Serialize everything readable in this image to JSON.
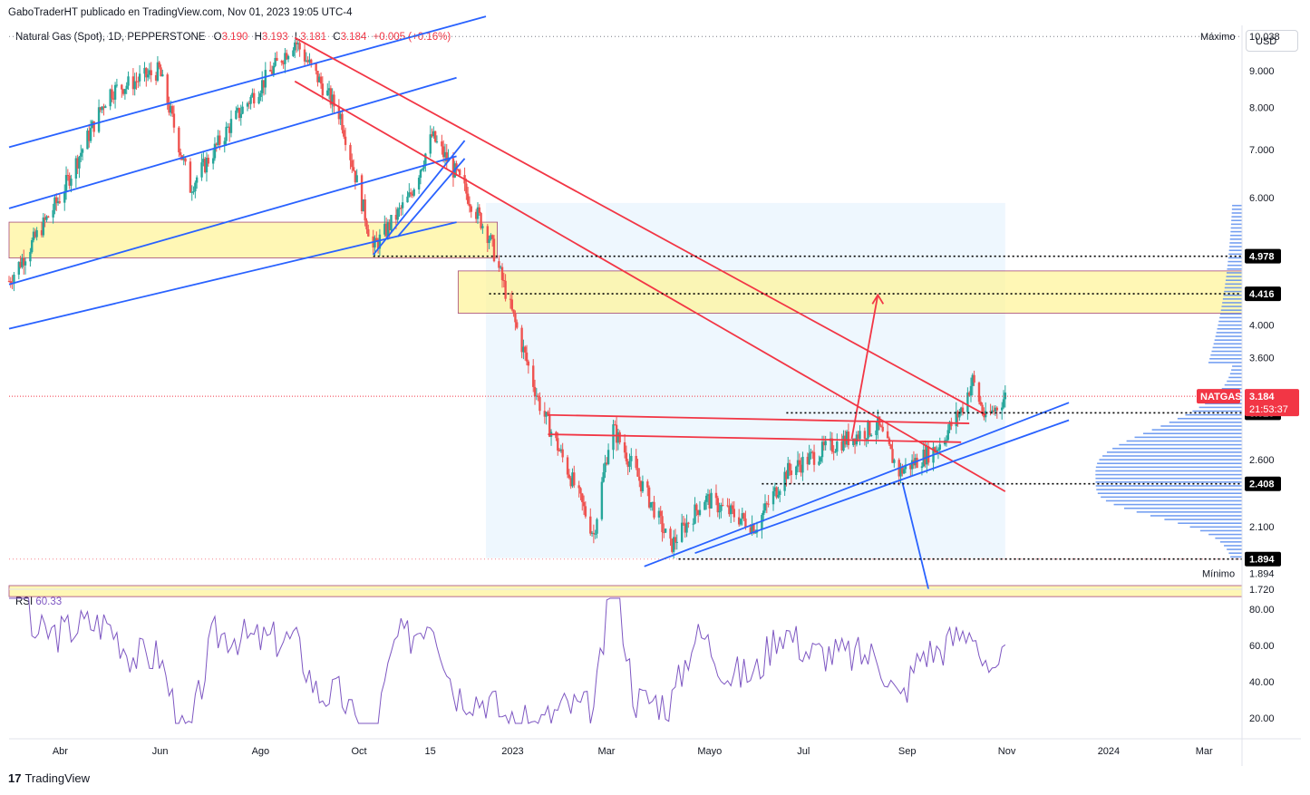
{
  "header": {
    "published_line": "GaboTraderHT publicado en TradingView.com, Nov 01, 2023 19:05 UTC-4"
  },
  "legend": {
    "symbol": "Natural Gas (Spot), 1D, PEPPERSTONE",
    "o_label": "O",
    "o_value": "3.190",
    "h_label": "H",
    "h_value": "3.193",
    "l_label": "L",
    "l_value": "3.181",
    "c_label": "C",
    "c_value": "3.184",
    "change": "+0.005 (+0.16%)"
  },
  "currency_button": "USD",
  "rsi": {
    "label": "RSI",
    "value": "60.33"
  },
  "brand": {
    "logo": "17",
    "name": "TradingView"
  },
  "colors": {
    "up": "#26a69a",
    "down": "#ef5350",
    "blue_line": "#2962ff",
    "red_line": "#f23645",
    "zone_fill": "#fff59d",
    "zone_border": "#880e4f",
    "rsi_line": "#7e57c2",
    "volume_profile": "#5b8def",
    "tag_bg": "#000000"
  },
  "axis": {
    "max_label": "Máximo",
    "max_value": "10.038",
    "min_label": "Mínimo",
    "min_value": "1.894",
    "right_ticks": [
      "9.000",
      "8.000",
      "7.000",
      "6.000",
      "4.000",
      "3.600",
      "2.600",
      "2.100",
      "1.720"
    ],
    "level_tags": [
      "4.978",
      "4.416",
      "3.020",
      "2.408",
      "1.894"
    ],
    "symbol_tag": "NATGAS",
    "price_tag": "3.184",
    "countdown": "21:53:37",
    "rsi_ticks": [
      "80.00",
      "60.00",
      "40.00",
      "20.00"
    ],
    "x_ticks": [
      "Abr",
      "Jun",
      "Ago",
      "Oct",
      "15",
      "2023",
      "Mar",
      "Mayo",
      "Jul",
      "Sep",
      "Nov",
      "2024",
      "Mar"
    ]
  },
  "chart_data": {
    "type": "candlestick",
    "title": "Natural Gas (Spot), 1D, PEPPERSTONE",
    "price_scale": "log",
    "ylim": [
      1.72,
      10.4
    ],
    "x_range": [
      "2022-03",
      "2024-03"
    ],
    "last": {
      "open": 3.19,
      "high": 3.193,
      "low": 3.181,
      "close": 3.184,
      "change": 0.005,
      "change_pct": 0.16
    },
    "max": 10.038,
    "min": 1.894,
    "horizontal_levels": [
      4.978,
      4.416,
      3.02,
      2.408,
      1.894
    ],
    "zones": [
      {
        "from": "2022-03",
        "to": "2022-12",
        "low": 4.95,
        "high": 5.55
      },
      {
        "from": "2022-12",
        "to": "2024-03",
        "low": 4.15,
        "high": 4.75
      },
      {
        "from": "2022-03",
        "to": "2024-03",
        "low": 1.68,
        "high": 1.74
      }
    ],
    "price_path": [
      [
        "2022-03-01",
        4.6
      ],
      [
        "2022-04-01",
        6.0
      ],
      [
        "2022-05-01",
        8.4
      ],
      [
        "2022-06-01",
        9.0
      ],
      [
        "2022-06-20",
        6.2
      ],
      [
        "2022-07-15",
        7.6
      ],
      [
        "2022-08-23",
        9.9
      ],
      [
        "2022-09-20",
        7.8
      ],
      [
        "2022-10-10",
        5.1
      ],
      [
        "2022-11-01",
        6.0
      ],
      [
        "2022-11-15",
        7.3
      ],
      [
        "2022-12-01",
        6.4
      ],
      [
        "2022-12-20",
        5.3
      ],
      [
        "2023-01-01",
        4.3
      ],
      [
        "2023-01-20",
        3.1
      ],
      [
        "2023-02-10",
        2.4
      ],
      [
        "2023-02-22",
        2.05
      ],
      [
        "2023-03-05",
        2.9
      ],
      [
        "2023-04-01",
        2.2
      ],
      [
        "2023-04-10",
        1.97
      ],
      [
        "2023-05-01",
        2.3
      ],
      [
        "2023-06-01",
        2.1
      ],
      [
        "2023-06-20",
        2.5
      ],
      [
        "2023-07-15",
        2.7
      ],
      [
        "2023-08-15",
        2.9
      ],
      [
        "2023-08-28",
        2.5
      ],
      [
        "2023-09-20",
        2.7
      ],
      [
        "2023-10-05",
        3.05
      ],
      [
        "2023-10-12",
        3.35
      ],
      [
        "2023-10-20",
        2.95
      ],
      [
        "2023-11-01",
        3.184
      ]
    ],
    "rsi": {
      "value": 60.33,
      "ylim": [
        10,
        90
      ],
      "levels": [
        80,
        60,
        40,
        20
      ]
    }
  }
}
